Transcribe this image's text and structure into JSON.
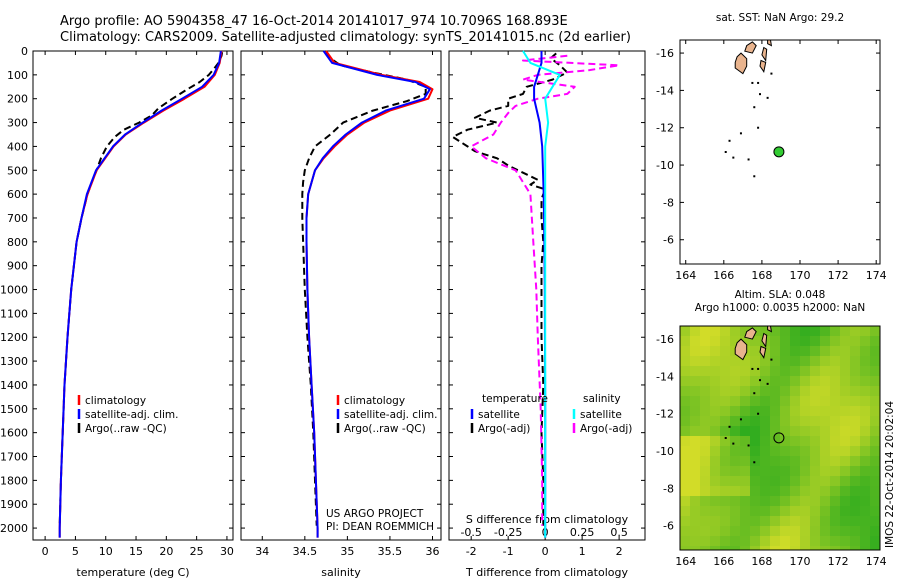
{
  "header": {
    "line1": "Argo profile: AO 5904358_47 16-Oct-2014 20141017_974 10.7096S 168.893E",
    "line2": "Climatology: CARS2009. Satellite-adjusted climatology: synTS_20141015.nc (2d earlier)"
  },
  "colors": {
    "climatology": "#ff0000",
    "satellite": "#0000ff",
    "argo": "#000000",
    "sal_satellite": "#00ffff",
    "sal_argo": "#ff00ff",
    "land": "#e9b48e",
    "argo_marker": "#33cc33"
  },
  "credits": {
    "project": "US ARGO PROJECT",
    "pi": "PI: DEAN ROEMMICH"
  },
  "imos_stamp": "IMOS 22-Oct-2014 20:02:04",
  "chart_data": [
    {
      "type": "line",
      "xlabel": "temperature (deg C)",
      "ylabel": "",
      "xlim": [
        -2,
        31
      ],
      "ylim": [
        2050,
        0
      ],
      "xticks": [
        0,
        5,
        10,
        15,
        20,
        25,
        30
      ],
      "yticks": [
        0,
        100,
        200,
        300,
        400,
        500,
        600,
        700,
        800,
        900,
        1000,
        1100,
        1200,
        1300,
        1400,
        1500,
        1600,
        1700,
        1800,
        1900,
        2000
      ],
      "legend": [
        "climatology",
        "satellite-adj. clim.",
        "Argo(..raw -QC)"
      ],
      "legend_position": "lower-right",
      "series": [
        {
          "name": "climatology",
          "depth": [
            0,
            50,
            100,
            150,
            200,
            250,
            300,
            350,
            400,
            500,
            600,
            700,
            800,
            1000,
            1200,
            1400,
            1600,
            1800,
            2000,
            2040
          ],
          "values": [
            29.1,
            28.8,
            28.0,
            26.3,
            23.0,
            19.5,
            16.3,
            13.3,
            11.3,
            8.5,
            7.0,
            6.0,
            5.2,
            4.3,
            3.7,
            3.2,
            2.9,
            2.6,
            2.4,
            2.4
          ]
        },
        {
          "name": "satellite-adj. clim.",
          "depth": [
            0,
            50,
            100,
            150,
            200,
            250,
            300,
            350,
            400,
            500,
            600,
            700,
            800,
            1000,
            1200,
            1400,
            1600,
            1800,
            2000,
            2040
          ],
          "values": [
            29.0,
            28.7,
            27.8,
            25.9,
            22.6,
            19.2,
            16.1,
            13.2,
            11.2,
            8.4,
            6.9,
            6.0,
            5.2,
            4.3,
            3.7,
            3.2,
            2.9,
            2.6,
            2.4,
            2.4
          ]
        },
        {
          "name": "Argo(..raw -QC)",
          "depth": [
            5,
            20,
            50,
            70,
            100,
            130,
            160,
            200,
            240,
            270,
            300,
            330,
            360,
            400,
            450,
            500,
            550,
            600,
            700,
            800,
            1000,
            1200,
            1400,
            1600,
            1800,
            1990
          ],
          "values": [
            29.2,
            29.1,
            28.6,
            28.0,
            27.0,
            25.5,
            23.5,
            21.0,
            18.7,
            17.6,
            15.5,
            13.0,
            11.5,
            10.2,
            9.2,
            8.5,
            7.7,
            7.0,
            6.0,
            5.2,
            4.3,
            3.7,
            3.2,
            2.9,
            2.6,
            2.4
          ]
        }
      ]
    },
    {
      "type": "line",
      "xlabel": "salinity",
      "ylabel": "",
      "xlim": [
        33.75,
        36.1
      ],
      "ylim": [
        2050,
        0
      ],
      "xticks": [
        34,
        34.5,
        35,
        35.5,
        36
      ],
      "legend": [
        "climatology",
        "satellite-adj. clim.",
        "Argo(..raw -QC)"
      ],
      "legend_position": "lower-right",
      "series": [
        {
          "name": "climatology",
          "depth": [
            0,
            50,
            100,
            130,
            160,
            200,
            250,
            300,
            350,
            400,
            450,
            500,
            600,
            700,
            800,
            1000,
            1200,
            1400,
            1600,
            1800,
            2000,
            2040
          ],
          "values": [
            34.75,
            34.85,
            35.4,
            35.85,
            36.0,
            35.95,
            35.5,
            35.2,
            35.0,
            34.85,
            34.72,
            34.62,
            34.54,
            34.52,
            34.52,
            34.53,
            34.55,
            34.58,
            34.61,
            34.63,
            34.65,
            34.65
          ]
        },
        {
          "name": "satellite-adj. clim.",
          "depth": [
            0,
            50,
            100,
            130,
            160,
            200,
            250,
            300,
            350,
            400,
            450,
            500,
            600,
            700,
            800,
            1000,
            1200,
            1400,
            1600,
            1800,
            2000,
            2040
          ],
          "values": [
            34.72,
            34.82,
            35.35,
            35.8,
            35.97,
            35.9,
            35.45,
            35.17,
            34.98,
            34.83,
            34.71,
            34.62,
            34.54,
            34.52,
            34.52,
            34.53,
            34.55,
            34.58,
            34.61,
            34.63,
            34.65,
            34.65
          ]
        },
        {
          "name": "Argo(..raw -QC)",
          "depth": [
            5,
            30,
            60,
            90,
            120,
            150,
            180,
            210,
            250,
            300,
            350,
            400,
            450,
            500,
            550,
            600,
            700,
            800,
            1000,
            1200,
            1400,
            1600,
            1800,
            1990
          ],
          "values": [
            34.75,
            34.8,
            34.92,
            35.3,
            35.7,
            35.92,
            35.92,
            35.7,
            35.3,
            34.95,
            34.8,
            34.62,
            34.55,
            34.5,
            34.48,
            34.47,
            34.47,
            34.48,
            34.5,
            34.53,
            34.57,
            34.6,
            34.62,
            34.64
          ]
        }
      ]
    },
    {
      "type": "line",
      "xlabel": "T difference from climatology",
      "top_label": "S difference from climatology",
      "xlim": [
        -2.6,
        2.7
      ],
      "ylim": [
        2050,
        0
      ],
      "xticks": [
        -2,
        -1,
        0,
        1,
        2
      ],
      "top_xticks": [
        "-0.5",
        "-0.25",
        "0",
        "0.25",
        "0.5"
      ],
      "legend_titles": [
        "temperature",
        "salinity"
      ],
      "legend": [
        "satellite",
        "Argo(-adj)",
        "satellite",
        "Argo(-adj)"
      ],
      "legend_position": "lower-center",
      "series": [
        {
          "name": "satellite",
          "depth": [
            0,
            50,
            100,
            150,
            200,
            300,
            400,
            600,
            800,
            1000,
            1500,
            2000,
            2040
          ],
          "values": [
            -0.1,
            -0.1,
            -0.2,
            -0.3,
            -0.3,
            -0.15,
            -0.08,
            -0.04,
            -0.02,
            -0.01,
            0,
            0,
            0
          ]
        },
        {
          "name": "Argo(-adj)",
          "depth": [
            10,
            30,
            60,
            90,
            120,
            150,
            180,
            200,
            230,
            250,
            280,
            300,
            330,
            360,
            400,
            420,
            450,
            480,
            510,
            540,
            560,
            580,
            620,
            700,
            800,
            900,
            1000,
            1200,
            1400,
            1600,
            1800,
            1990
          ],
          "values": [
            0.3,
            0.15,
            0.4,
            0.6,
            0.2,
            -0.5,
            -0.6,
            -1.0,
            -1.0,
            -1.5,
            -1.9,
            -1.3,
            -2.1,
            -2.5,
            -2.1,
            -1.9,
            -1.3,
            -1.0,
            -0.6,
            -0.2,
            -0.4,
            0.0,
            -0.1,
            -0.1,
            -0.05,
            -0.1,
            -0.1,
            -0.1,
            -0.05,
            -0.1,
            -0.05,
            -0.05
          ]
        },
        {
          "name": "satellite",
          "depth": [
            0,
            50,
            100,
            150,
            200,
            300,
            400,
            600,
            800,
            1000,
            1500,
            2000,
            2040
          ],
          "values": [
            -0.15,
            -0.1,
            0.1,
            0.05,
            0.0,
            0.02,
            0.0,
            0.0,
            0.0,
            0.0,
            0.0,
            0.0,
            0.0
          ]
        },
        {
          "name": "Argo(-adj)",
          "depth": [
            20,
            40,
            60,
            80,
            100,
            120,
            150,
            180,
            200,
            230,
            260,
            300,
            350,
            400,
            450,
            500,
            600,
            800,
            1000,
            1200,
            1500,
            1800,
            1990
          ],
          "values": [
            0.15,
            -0.15,
            0.5,
            0.3,
            -0.05,
            -0.15,
            0.2,
            0.15,
            -0.05,
            -0.2,
            -0.25,
            -0.3,
            -0.35,
            -0.5,
            -0.4,
            -0.2,
            -0.1,
            -0.08,
            -0.06,
            -0.05,
            -0.03,
            -0.02,
            -0.02
          ]
        }
      ]
    },
    {
      "type": "scatter",
      "title": "sat. SST: NaN  Argo: 29.2",
      "xlim": [
        163.7,
        174.2
      ],
      "ylim": [
        -16.7,
        -4.7
      ],
      "xticks": [
        164,
        166,
        168,
        170,
        172,
        174
      ],
      "yticks": [
        -6,
        -8,
        -10,
        -12,
        -14,
        -16
      ],
      "points": [
        {
          "x": 168.893,
          "y": -10.7096
        }
      ]
    },
    {
      "type": "heatmap",
      "title": "Altim. SLA: 0.048",
      "subtitle": "Argo h1000: 0.0035 h2000: NaN",
      "xlim": [
        163.7,
        174.2
      ],
      "ylim": [
        -16.7,
        -4.7
      ],
      "xticks": [
        164,
        166,
        168,
        170,
        172,
        174
      ],
      "yticks": [
        -6,
        -8,
        -10,
        -12,
        -14,
        -16
      ],
      "points": [
        {
          "x": 168.893,
          "y": -10.7096
        }
      ]
    }
  ]
}
